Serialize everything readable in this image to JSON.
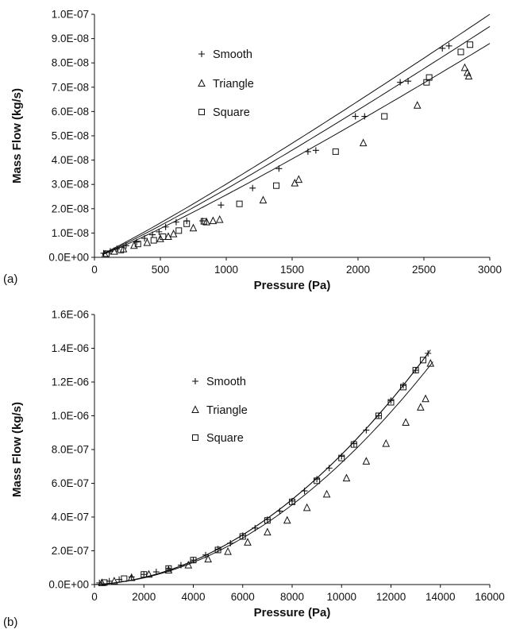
{
  "chart_data": [
    {
      "type": "scatter",
      "panel_label": "(a)",
      "xlabel": "Pressure (Pa)",
      "ylabel": "Mass Flow (kg/s)",
      "xlim": [
        0,
        3000
      ],
      "ylim": [
        0,
        1e-07
      ],
      "xticks": [
        0,
        500,
        1000,
        1500,
        2000,
        2500,
        3000
      ],
      "xtick_labels": [
        "0",
        "500",
        "1000",
        "1500",
        "2000",
        "2500",
        "3000"
      ],
      "yticks": [
        0,
        1e-08,
        2e-08,
        3e-08,
        4e-08,
        5e-08,
        6e-08,
        7e-08,
        8e-08,
        9e-08,
        1e-07
      ],
      "ytick_labels": [
        "0.0E+00",
        "1.0E-08",
        "2.0E-08",
        "3.0E-08",
        "4.0E-08",
        "5.0E-08",
        "6.0E-08",
        "7.0E-08",
        "8.0E-08",
        "9.0E-08",
        "1.0E-07"
      ],
      "legend_position": "upper-left",
      "grid": false,
      "series": [
        {
          "name": "Smooth",
          "marker": "plus",
          "points": [
            [
              70,
              1.7e-09
            ],
            [
              120,
              2.5e-09
            ],
            [
              170,
              3.5e-09
            ],
            [
              240,
              4.8e-09
            ],
            [
              320,
              6.3e-09
            ],
            [
              380,
              7.8e-09
            ],
            [
              440,
              9.3e-09
            ],
            [
              490,
              1.05e-08
            ],
            [
              540,
              1.25e-08
            ],
            [
              620,
              1.45e-08
            ],
            [
              700,
              1.5e-08
            ],
            [
              820,
              1.5e-08
            ],
            [
              960,
              2.15e-08
            ],
            [
              1200,
              2.85e-08
            ],
            [
              1400,
              3.65e-08
            ],
            [
              1620,
              4.35e-08
            ],
            [
              1680,
              4.4e-08
            ],
            [
              1980,
              5.8e-08
            ],
            [
              2050,
              5.8e-08
            ],
            [
              2320,
              7.2e-08
            ],
            [
              2380,
              7.25e-08
            ],
            [
              2640,
              8.6e-08
            ],
            [
              2690,
              8.7e-08
            ]
          ],
          "fit": [
            [
              60,
              1.4e-09
            ],
            [
              3000,
              1e-07
            ]
          ]
        },
        {
          "name": "Triangle",
          "marker": "triangle",
          "points": [
            [
              80,
              1.2e-09
            ],
            [
              150,
              2.4e-09
            ],
            [
              220,
              3.4e-09
            ],
            [
              300,
              4.8e-09
            ],
            [
              400,
              6e-09
            ],
            [
              500,
              7.6e-09
            ],
            [
              560,
              8.5e-09
            ],
            [
              600,
              9.6e-09
            ],
            [
              750,
              1.2e-08
            ],
            [
              850,
              1.45e-08
            ],
            [
              900,
              1.5e-08
            ],
            [
              950,
              1.55e-08
            ],
            [
              1280,
              2.35e-08
            ],
            [
              1520,
              3.05e-08
            ],
            [
              1550,
              3.2e-08
            ],
            [
              2040,
              4.7e-08
            ],
            [
              2450,
              6.25e-08
            ],
            [
              2810,
              7.8e-08
            ],
            [
              2830,
              7.6e-08
            ],
            [
              2840,
              7.45e-08
            ]
          ],
          "fit": [
            [
              60,
              1.1e-09
            ],
            [
              3000,
              8.8e-08
            ]
          ]
        },
        {
          "name": "Square",
          "marker": "square",
          "points": [
            [
              90,
              1.5e-09
            ],
            [
              200,
              3e-09
            ],
            [
              330,
              5.5e-09
            ],
            [
              450,
              7e-09
            ],
            [
              520,
              8.5e-09
            ],
            [
              640,
              1.1e-08
            ],
            [
              700,
              1.38e-08
            ],
            [
              830,
              1.48e-08
            ],
            [
              1100,
              2.2e-08
            ],
            [
              1380,
              2.95e-08
            ],
            [
              1830,
              4.35e-08
            ],
            [
              2200,
              5.8e-08
            ],
            [
              2520,
              7.2e-08
            ],
            [
              2540,
              7.4e-08
            ],
            [
              2780,
              8.45e-08
            ],
            [
              2850,
              8.75e-08
            ]
          ],
          "fit": [
            [
              60,
              1.25e-09
            ],
            [
              3000,
              9.5e-08
            ]
          ]
        }
      ]
    },
    {
      "type": "scatter",
      "panel_label": "(b)",
      "xlabel": "Pressure (Pa)",
      "ylabel": "Mass Flow (kg/s)",
      "xlim": [
        0,
        16000
      ],
      "ylim": [
        0,
        1.6e-06
      ],
      "xticks": [
        0,
        2000,
        4000,
        6000,
        8000,
        10000,
        12000,
        14000,
        16000
      ],
      "xtick_labels": [
        "0",
        "2000",
        "4000",
        "6000",
        "8000",
        "10000",
        "12000",
        "14000",
        "16000"
      ],
      "yticks": [
        0,
        2e-07,
        4e-07,
        6e-07,
        8e-07,
        1e-06,
        1.2e-06,
        1.4e-06,
        1.6e-06
      ],
      "ytick_labels": [
        "0.0E+00",
        "2.0E-07",
        "4.0E-07",
        "6.0E-07",
        "8.0E-07",
        "1.0E-06",
        "1.2E-06",
        "1.4E-06",
        "1.6E-06"
      ],
      "legend_position": "upper-center",
      "grid": false,
      "series": [
        {
          "name": "Smooth",
          "marker": "plus",
          "points": [
            [
              200,
              1e-08
            ],
            [
              600,
              2e-08
            ],
            [
              1000,
              3e-08
            ],
            [
              1500,
              4.5e-08
            ],
            [
              2000,
              6e-08
            ],
            [
              2500,
              7.5e-08
            ],
            [
              3000,
              9.5e-08
            ],
            [
              3500,
              1.15e-07
            ],
            [
              4000,
              1.45e-07
            ],
            [
              4500,
              1.75e-07
            ],
            [
              5000,
              2.1e-07
            ],
            [
              5500,
              2.45e-07
            ],
            [
              6000,
              2.9e-07
            ],
            [
              6500,
              3.35e-07
            ],
            [
              7000,
              3.85e-07
            ],
            [
              7500,
              4.35e-07
            ],
            [
              8000,
              4.95e-07
            ],
            [
              8500,
              5.55e-07
            ],
            [
              9000,
              6.25e-07
            ],
            [
              9500,
              6.9e-07
            ],
            [
              10000,
              7.6e-07
            ],
            [
              10500,
              8.35e-07
            ],
            [
              11000,
              9.15e-07
            ],
            [
              11500,
              1e-06
            ],
            [
              12000,
              1.09e-06
            ],
            [
              12500,
              1.18e-06
            ],
            [
              13000,
              1.27e-06
            ],
            [
              13500,
              1.37e-06
            ]
          ],
          "fit": [
            [
              0,
              0
            ],
            [
              13600,
              1.39e-06
            ]
          ]
        },
        {
          "name": "Triangle",
          "marker": "triangle",
          "points": [
            [
              300,
              1e-08
            ],
            [
              800,
              2e-08
            ],
            [
              1500,
              4e-08
            ],
            [
              2200,
              6e-08
            ],
            [
              3000,
              8.5e-08
            ],
            [
              3800,
              1.15e-07
            ],
            [
              4600,
              1.5e-07
            ],
            [
              5400,
              1.95e-07
            ],
            [
              6200,
              2.5e-07
            ],
            [
              7000,
              3.1e-07
            ],
            [
              7800,
              3.8e-07
            ],
            [
              8600,
              4.55e-07
            ],
            [
              9400,
              5.35e-07
            ],
            [
              10200,
              6.3e-07
            ],
            [
              11000,
              7.3e-07
            ],
            [
              11800,
              8.35e-07
            ],
            [
              12600,
              9.6e-07
            ],
            [
              13200,
              1.05e-06
            ],
            [
              13400,
              1.1e-06
            ],
            [
              13600,
              1.31e-06
            ]
          ],
          "fit": [
            [
              0,
              0
            ],
            [
              13700,
              1.32e-06
            ]
          ]
        },
        {
          "name": "Square",
          "marker": "square",
          "points": [
            [
              400,
              1.2e-08
            ],
            [
              1200,
              3.5e-08
            ],
            [
              2000,
              6e-08
            ],
            [
              3000,
              9.5e-08
            ],
            [
              4000,
              1.45e-07
            ],
            [
              5000,
              2.05e-07
            ],
            [
              6000,
              2.85e-07
            ],
            [
              7000,
              3.8e-07
            ],
            [
              8000,
              4.9e-07
            ],
            [
              9000,
              6.15e-07
            ],
            [
              10000,
              7.5e-07
            ],
            [
              10500,
              8.3e-07
            ],
            [
              11500,
              1e-06
            ],
            [
              12000,
              1.08e-06
            ],
            [
              12500,
              1.17e-06
            ],
            [
              13000,
              1.27e-06
            ],
            [
              13300,
              1.33e-06
            ]
          ],
          "fit": [
            [
              0,
              0
            ],
            [
              13500,
              1.37e-06
            ]
          ]
        }
      ]
    }
  ]
}
